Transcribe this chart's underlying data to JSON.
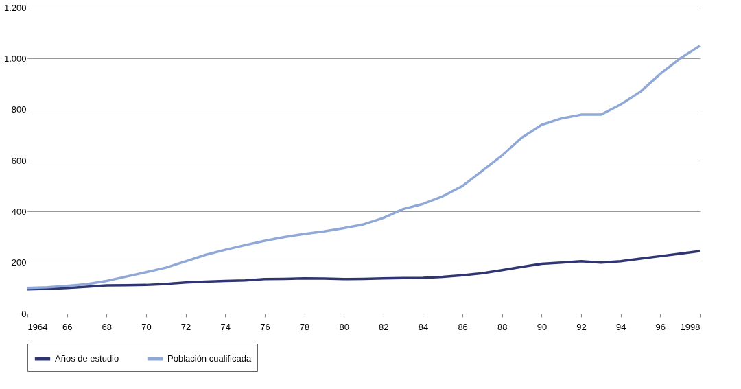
{
  "chart_data": {
    "type": "line",
    "x": [
      1964,
      1965,
      1966,
      1967,
      1968,
      1969,
      1970,
      1971,
      1972,
      1973,
      1974,
      1975,
      1976,
      1977,
      1978,
      1979,
      1980,
      1981,
      1982,
      1983,
      1984,
      1985,
      1986,
      1987,
      1988,
      1989,
      1990,
      1991,
      1992,
      1993,
      1994,
      1995,
      1996,
      1997,
      1998
    ],
    "series": [
      {
        "name": "Años de estudio",
        "color": "#2e3570",
        "values": [
          95,
          97,
          100,
          105,
          110,
          111,
          112,
          116,
          122,
          125,
          128,
          130,
          135,
          136,
          138,
          137,
          135,
          136,
          138,
          139,
          140,
          144,
          150,
          158,
          170,
          183,
          195,
          200,
          205,
          200,
          205,
          215,
          225,
          235,
          245
        ]
      },
      {
        "name": "Población cualificada",
        "color": "#8fa8d8",
        "values": [
          100,
          103,
          108,
          115,
          128,
          145,
          162,
          180,
          205,
          230,
          250,
          268,
          285,
          300,
          312,
          322,
          335,
          350,
          375,
          410,
          430,
          460,
          500,
          560,
          620,
          690,
          740,
          765,
          780,
          780,
          820,
          870,
          940,
          1000,
          1050
        ]
      }
    ],
    "xlim": [
      1964,
      1998
    ],
    "xticks": [
      1964,
      {
        "value": 1966,
        "label": "66"
      },
      {
        "value": 1968,
        "label": "68"
      },
      {
        "value": 1970,
        "label": "70"
      },
      {
        "value": 1972,
        "label": "72"
      },
      {
        "value": 1974,
        "label": "74"
      },
      {
        "value": 1976,
        "label": "76"
      },
      {
        "value": 1978,
        "label": "78"
      },
      {
        "value": 1980,
        "label": "80"
      },
      {
        "value": 1982,
        "label": "82"
      },
      {
        "value": 1984,
        "label": "84"
      },
      {
        "value": 1986,
        "label": "86"
      },
      {
        "value": 1988,
        "label": "88"
      },
      {
        "value": 1990,
        "label": "90"
      },
      {
        "value": 1992,
        "label": "92"
      },
      {
        "value": 1994,
        "label": "94"
      },
      {
        "value": 1996,
        "label": "96"
      },
      1998
    ],
    "ylim": [
      0,
      1200
    ],
    "yticks": [
      0,
      200,
      400,
      600,
      800,
      {
        "value": 1000,
        "label": "1.000"
      },
      {
        "value": 1200,
        "label": "1.200"
      }
    ],
    "grid": "y",
    "legend": "bottom",
    "marker": "none",
    "line_style": "solid"
  }
}
